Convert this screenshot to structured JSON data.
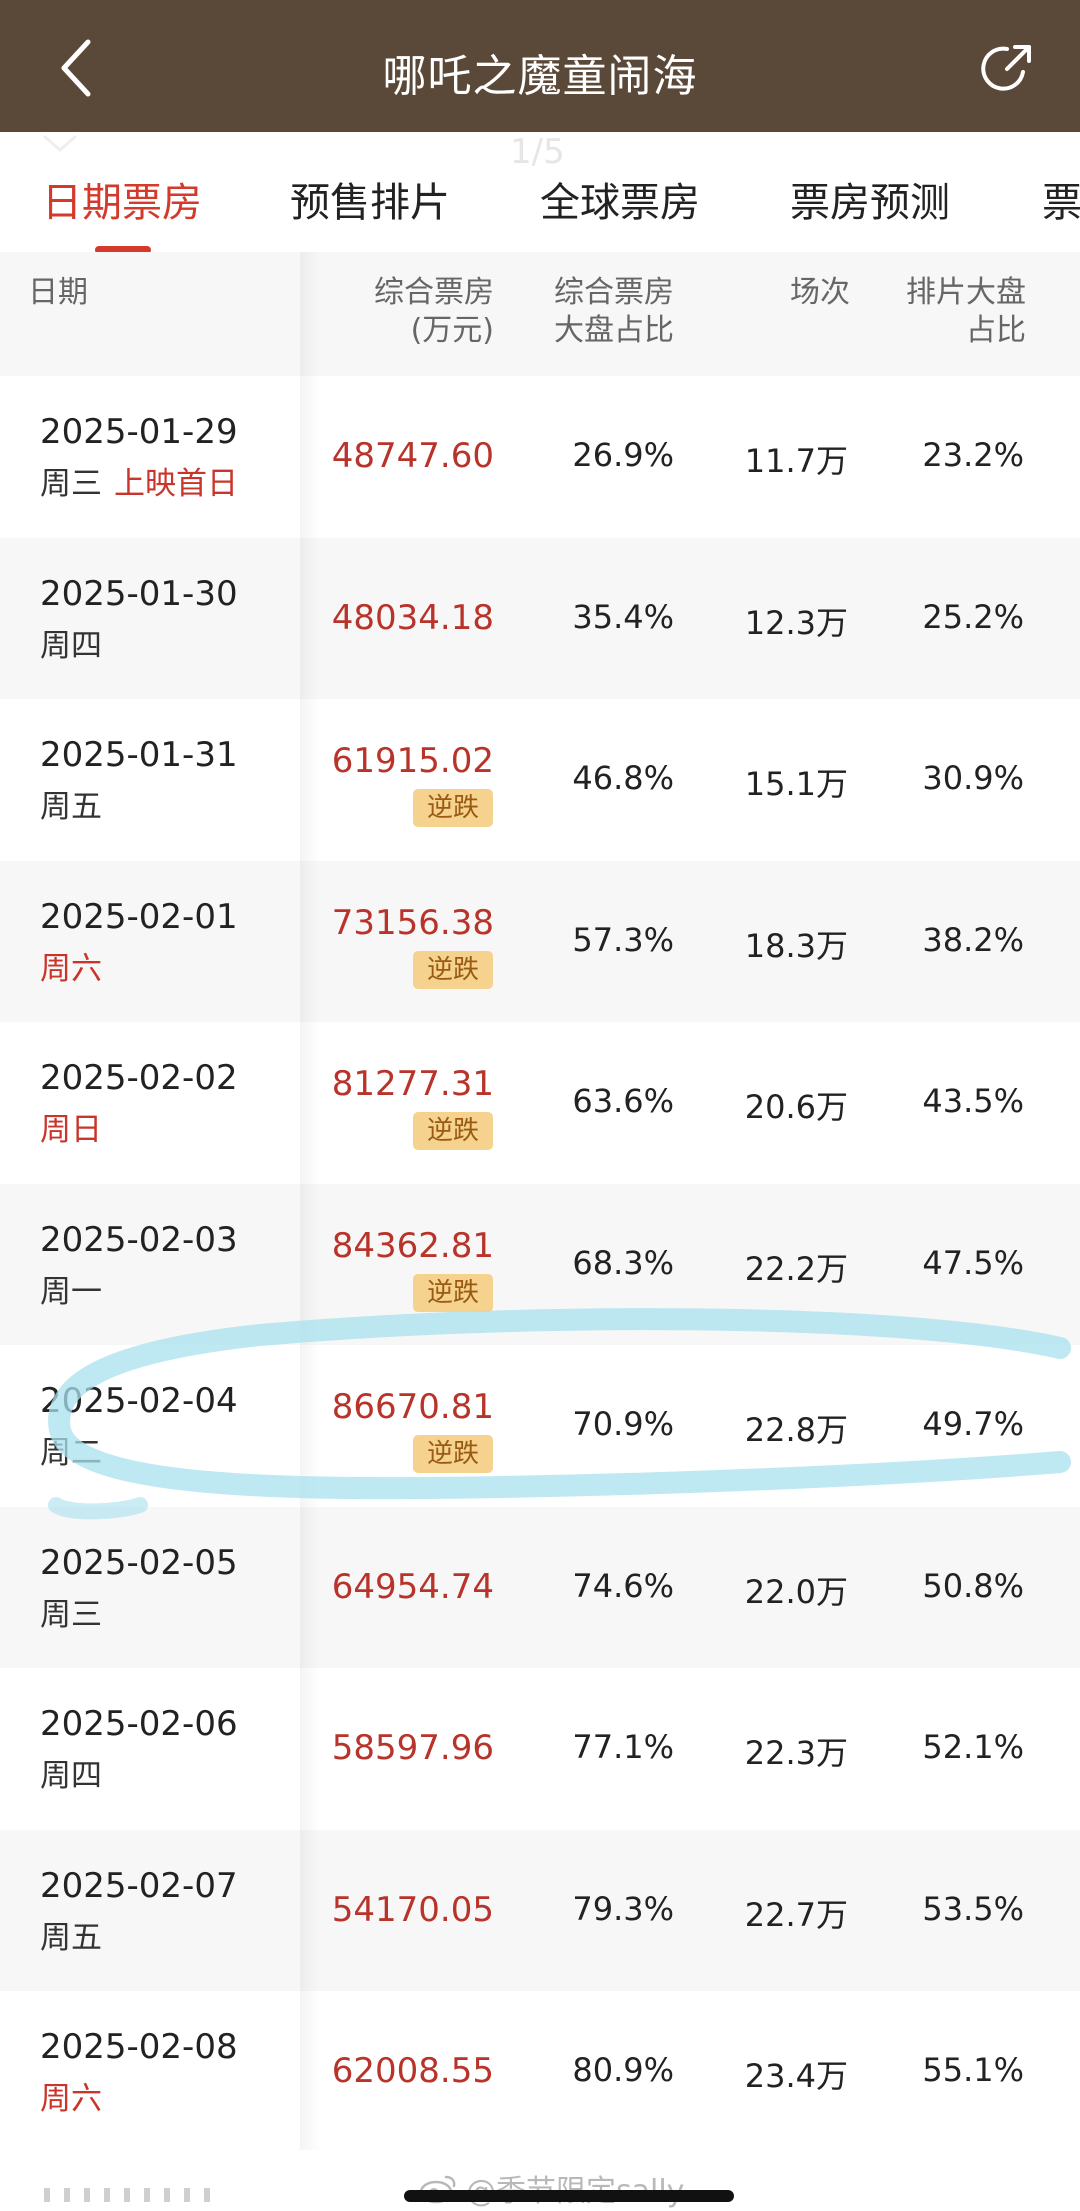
{
  "header": {
    "title": "哪吒之魔童闹海",
    "back_icon": "chevron-left-icon",
    "share_icon": "share-arrow-icon",
    "background": "#5a4838"
  },
  "overlay": {
    "page_counter": "1/5"
  },
  "tabs": [
    {
      "label": "日期票房",
      "active": true
    },
    {
      "label": "预售排片",
      "active": false
    },
    {
      "label": "全球票房",
      "active": false
    },
    {
      "label": "票房预测",
      "active": false
    },
    {
      "label": "票",
      "active": false
    }
  ],
  "table": {
    "headers": {
      "date": "日期",
      "box_office": [
        "综合票房",
        "(万元)"
      ],
      "box_share": [
        "综合票房",
        "大盘占比"
      ],
      "shows": "场次",
      "schedule_share": [
        "排片大盘",
        "占比"
      ]
    },
    "rows": [
      {
        "date": "2025-01-29",
        "weekday": "周三",
        "weekend": false,
        "note": "上映首日",
        "box_office": "48747.60",
        "tag": "",
        "box_share": "26.9%",
        "shows": "11.7万",
        "schedule_share": "23.2%"
      },
      {
        "date": "2025-01-30",
        "weekday": "周四",
        "weekend": false,
        "note": "",
        "box_office": "48034.18",
        "tag": "",
        "box_share": "35.4%",
        "shows": "12.3万",
        "schedule_share": "25.2%"
      },
      {
        "date": "2025-01-31",
        "weekday": "周五",
        "weekend": false,
        "note": "",
        "box_office": "61915.02",
        "tag": "逆跌",
        "box_share": "46.8%",
        "shows": "15.1万",
        "schedule_share": "30.9%"
      },
      {
        "date": "2025-02-01",
        "weekday": "周六",
        "weekend": true,
        "note": "",
        "box_office": "73156.38",
        "tag": "逆跌",
        "box_share": "57.3%",
        "shows": "18.3万",
        "schedule_share": "38.2%"
      },
      {
        "date": "2025-02-02",
        "weekday": "周日",
        "weekend": true,
        "note": "",
        "box_office": "81277.31",
        "tag": "逆跌",
        "box_share": "63.6%",
        "shows": "20.6万",
        "schedule_share": "43.5%"
      },
      {
        "date": "2025-02-03",
        "weekday": "周一",
        "weekend": false,
        "note": "",
        "box_office": "84362.81",
        "tag": "逆跌",
        "box_share": "68.3%",
        "shows": "22.2万",
        "schedule_share": "47.5%"
      },
      {
        "date": "2025-02-04",
        "weekday": "周二",
        "weekend": false,
        "note": "",
        "box_office": "86670.81",
        "tag": "逆跌",
        "box_share": "70.9%",
        "shows": "22.8万",
        "schedule_share": "49.7%"
      },
      {
        "date": "2025-02-05",
        "weekday": "周三",
        "weekend": false,
        "note": "",
        "box_office": "64954.74",
        "tag": "",
        "box_share": "74.6%",
        "shows": "22.0万",
        "schedule_share": "50.8%"
      },
      {
        "date": "2025-02-06",
        "weekday": "周四",
        "weekend": false,
        "note": "",
        "box_office": "58597.96",
        "tag": "",
        "box_share": "77.1%",
        "shows": "22.3万",
        "schedule_share": "52.1%"
      },
      {
        "date": "2025-02-07",
        "weekday": "周五",
        "weekend": false,
        "note": "",
        "box_office": "54170.05",
        "tag": "",
        "box_share": "79.3%",
        "shows": "22.7万",
        "schedule_share": "53.5%"
      },
      {
        "date": "2025-02-08",
        "weekday": "周六",
        "weekend": true,
        "note": "",
        "box_office": "62008.55",
        "tag": "",
        "box_share": "80.9%",
        "shows": "23.4万",
        "schedule_share": "55.1%"
      }
    ]
  },
  "colors": {
    "accent": "#d33a2c",
    "box_office_text": "#b8342a",
    "tag_bg": "#f6d28f",
    "highlight_stroke": "#a8e0ee"
  },
  "watermark": "@季节限定sally"
}
